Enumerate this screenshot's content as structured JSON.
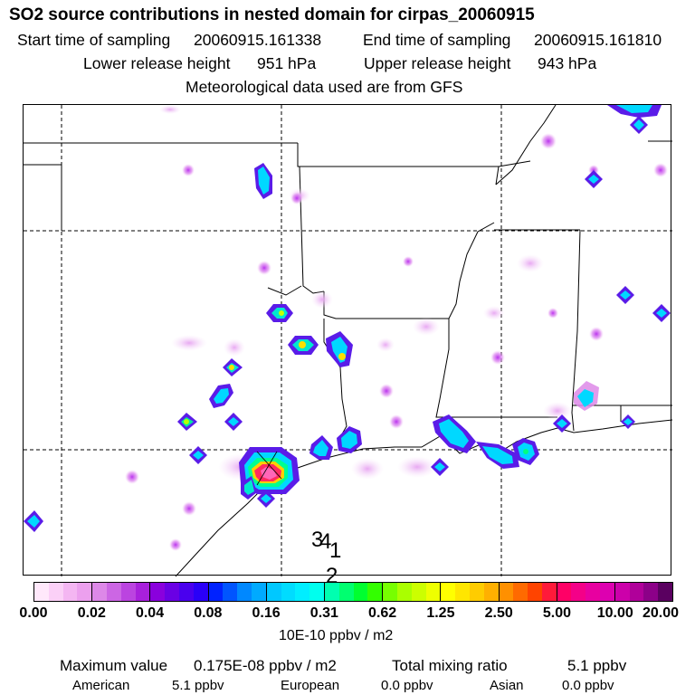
{
  "title": "SO2 source contributions in nested domain for cirpas_20060915",
  "sampling": {
    "start_label": "Start time of sampling",
    "start_value": "20060915.161338",
    "end_label": "End time of sampling",
    "end_value": "20060915.161810"
  },
  "release": {
    "lower_label": "Lower release height",
    "lower_value": "951 hPa",
    "upper_label": "Upper release height",
    "upper_value": "943 hPa"
  },
  "met_note": "Meteorological data used are from GFS",
  "colorbar": {
    "ticks": [
      "0.00",
      "0.02",
      "0.04",
      "0.08",
      "0.16",
      "0.31",
      "0.62",
      "1.25",
      "2.50",
      "5.00",
      "10.00",
      "20.00"
    ],
    "units": "10E-10 ppbv / m2",
    "colors": [
      [
        "#ffe8fb",
        "#fbd0f7",
        "#f4b6f2",
        "#eca0ee"
      ],
      [
        "#dd88e8",
        "#cc66e4",
        "#bb44e0",
        "#a820dc"
      ],
      [
        "#8a00dd",
        "#6a00e4",
        "#4a00ee",
        "#2a00f8"
      ],
      [
        "#0022ff",
        "#0055ff",
        "#0088ff",
        "#00aaff"
      ],
      [
        "#00c8ff",
        "#00dcff",
        "#00eeff",
        "#00ffee"
      ],
      [
        "#00ffb0",
        "#00ff70",
        "#00ff30",
        "#33ff00"
      ],
      [
        "#77ff00",
        "#aaff00",
        "#ccff00",
        "#eeff00"
      ],
      [
        "#ffff00",
        "#ffe600",
        "#ffcc00",
        "#ffb000"
      ],
      [
        "#ff9000",
        "#ff6a00",
        "#ff4400",
        "#ff1a3a"
      ],
      [
        "#ff0066",
        "#f40088",
        "#e800a0",
        "#dd00b0"
      ],
      [
        "#cc00aa",
        "#b0009a",
        "#8c0088",
        "#5a0060"
      ]
    ]
  },
  "stats": {
    "max_label": "Maximum value",
    "max_value": "0.175E-08 ppbv / m2",
    "total_label": "Total mixing ratio",
    "total_value": "5.1 ppbv",
    "american_label": "American",
    "american_value": "5.1 ppbv",
    "european_label": "European",
    "european_value": "0.0 ppbv",
    "asian_label": "Asian",
    "asian_value": "0.0 ppbv"
  },
  "map_labels": [
    "3",
    "4",
    "1",
    "2"
  ]
}
